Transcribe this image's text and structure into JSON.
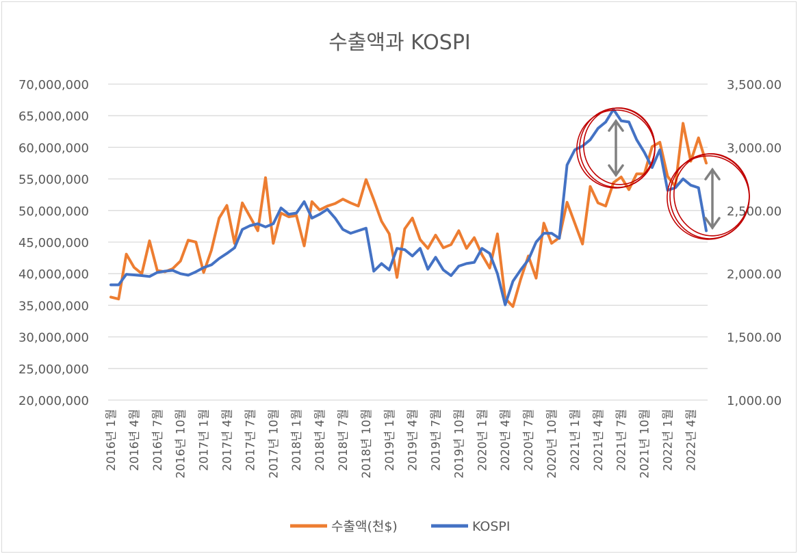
{
  "chart_data": {
    "type": "line",
    "title": "수출액과 KOSPI",
    "x_tick_labels": [
      "2016년 1월",
      "2016년 4월",
      "2016년 7월",
      "2016년 10월",
      "2017년 1월",
      "2017년 4월",
      "2017년 7월",
      "2017년 10월",
      "2018년 1월",
      "2018년 4월",
      "2018년 7월",
      "2018년 10월",
      "2019년 1월",
      "2019년 4월",
      "2019년 7월",
      "2019년 10월",
      "2020년 1월",
      "2020년 4월",
      "2020년 7월",
      "2020년 10월",
      "2021년 1월",
      "2021년 4월",
      "2021년 7월",
      "2021년 10월",
      "2022년 1월",
      "2022년 4월"
    ],
    "left_axis": {
      "ylim": [
        20000000,
        70000000
      ],
      "tick_labels": [
        "20,000,000",
        "25,000,000",
        "30,000,000",
        "35,000,000",
        "40,000,000",
        "45,000,000",
        "50,000,000",
        "55,000,000",
        "60,000,000",
        "65,000,000",
        "70,000,000"
      ]
    },
    "right_axis": {
      "ylim": [
        1000,
        3500
      ],
      "tick_labels": [
        "1,000.00",
        "1,500.00",
        "2,000.00",
        "2,500.00",
        "3,000.00",
        "3,500.00"
      ]
    },
    "grid": true,
    "legend_position": "bottom",
    "series": [
      {
        "name": "수출액(천$)",
        "axis": "left",
        "color": "#ed7d31",
        "values": [
          36300000,
          36000000,
          43100000,
          41000000,
          40000000,
          45200000,
          40500000,
          40300000,
          40800000,
          42000000,
          45300000,
          45000000,
          40200000,
          43700000,
          48800000,
          50800000,
          44800000,
          51200000,
          49000000,
          46800000,
          55200000,
          44800000,
          49600000,
          49000000,
          49200000,
          44400000,
          51400000,
          50100000,
          50700000,
          51100000,
          51800000,
          51200000,
          50700000,
          54900000,
          51700000,
          48300000,
          46300000,
          39400000,
          47100000,
          48800000,
          45400000,
          44000000,
          46100000,
          44100000,
          44600000,
          46800000,
          44000000,
          45700000,
          43000000,
          40900000,
          46300000,
          36100000,
          34800000,
          39100000,
          42800000,
          39300000,
          48000000,
          44800000,
          45700000,
          51300000,
          48000000,
          44700000,
          53800000,
          51200000,
          50700000,
          54400000,
          55300000,
          53300000,
          55800000,
          55800000,
          60100000,
          60800000,
          55400000,
          53800000,
          63800000,
          57800000,
          61500000,
          57500000
        ]
      },
      {
        "name": "KOSPI",
        "axis": "right",
        "color": "#4472c4",
        "values": [
          1912,
          1912,
          1995,
          1990,
          1985,
          1978,
          2010,
          2020,
          2026,
          2000,
          1988,
          2015,
          2048,
          2070,
          2120,
          2160,
          2205,
          2350,
          2380,
          2395,
          2370,
          2395,
          2520,
          2470,
          2480,
          2570,
          2440,
          2470,
          2510,
          2440,
          2350,
          2320,
          2340,
          2360,
          2020,
          2080,
          2030,
          2200,
          2190,
          2140,
          2200,
          2035,
          2130,
          2030,
          1985,
          2060,
          2080,
          2090,
          2200,
          2160,
          2000,
          1754,
          1940,
          2030,
          2110,
          2250,
          2320,
          2320,
          2280,
          2860,
          2980,
          3010,
          3060,
          3150,
          3200,
          3300,
          3210,
          3200,
          3060,
          2960,
          2840,
          2980,
          2660,
          2680,
          2750,
          2700,
          2680,
          2340
        ]
      }
    ],
    "annotations": [
      {
        "type": "double-arrow",
        "color": "#808080"
      },
      {
        "type": "double-arrow",
        "color": "#808080"
      },
      {
        "type": "hand-drawn-circle",
        "color": "#c00000"
      },
      {
        "type": "hand-drawn-circle",
        "color": "#c00000"
      }
    ]
  }
}
